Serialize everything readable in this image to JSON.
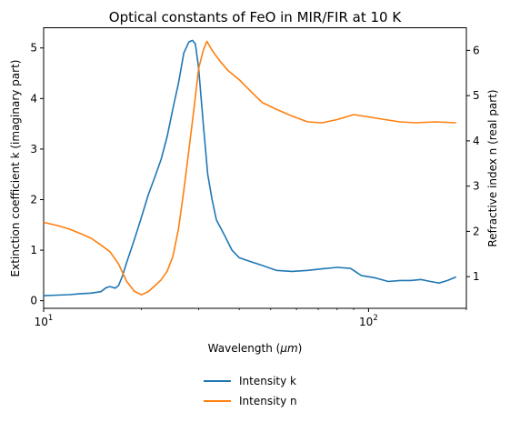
{
  "chart_data": {
    "type": "line",
    "title": "Optical constants of FeO in MIR/FIR at 10 K",
    "xlabel_prefix": "Wavelength (",
    "xlabel_unit": "μm",
    "xlabel_suffix": ")",
    "ylabel_left": "Extinction coefficient k (imaginary part)",
    "ylabel_right": "Refractive index n (real part)",
    "x_scale": "log",
    "xlim": [
      10,
      200
    ],
    "ylim_left": [
      -0.15,
      5.4
    ],
    "ylim_right": [
      0.3,
      6.5
    ],
    "x_ticks": [
      {
        "value": 10,
        "label": "10^1"
      },
      {
        "value": 100,
        "label": "10^2"
      }
    ],
    "y_ticks_left": [
      {
        "value": 0,
        "label": "0"
      },
      {
        "value": 1,
        "label": "1"
      },
      {
        "value": 2,
        "label": "2"
      },
      {
        "value": 3,
        "label": "3"
      },
      {
        "value": 4,
        "label": "4"
      },
      {
        "value": 5,
        "label": "5"
      }
    ],
    "y_ticks_right": [
      {
        "value": 1,
        "label": "1"
      },
      {
        "value": 2,
        "label": "2"
      },
      {
        "value": 3,
        "label": "3"
      },
      {
        "value": 4,
        "label": "4"
      },
      {
        "value": 5,
        "label": "5"
      },
      {
        "value": 6,
        "label": "6"
      }
    ],
    "grid": false,
    "legend_position": "bottom-center",
    "series": [
      {
        "name": "Intensity k",
        "axis": "left",
        "color": "#1f77b4",
        "points": [
          [
            10.0,
            0.1
          ],
          [
            11.0,
            0.11
          ],
          [
            12.0,
            0.12
          ],
          [
            13.0,
            0.14
          ],
          [
            14.0,
            0.15
          ],
          [
            15.0,
            0.18
          ],
          [
            15.6,
            0.26
          ],
          [
            16.0,
            0.28
          ],
          [
            16.6,
            0.25
          ],
          [
            17.0,
            0.3
          ],
          [
            17.5,
            0.5
          ],
          [
            18.0,
            0.75
          ],
          [
            19.0,
            1.2
          ],
          [
            20.0,
            1.65
          ],
          [
            21.0,
            2.1
          ],
          [
            22.0,
            2.45
          ],
          [
            23.0,
            2.8
          ],
          [
            24.0,
            3.25
          ],
          [
            25.0,
            3.8
          ],
          [
            26.0,
            4.3
          ],
          [
            27.0,
            4.9
          ],
          [
            28.0,
            5.12
          ],
          [
            28.7,
            5.15
          ],
          [
            29.3,
            5.08
          ],
          [
            30.0,
            4.6
          ],
          [
            31.0,
            3.5
          ],
          [
            32.0,
            2.5
          ],
          [
            33.0,
            2.0
          ],
          [
            34.0,
            1.6
          ],
          [
            36.0,
            1.3
          ],
          [
            38.0,
            1.0
          ],
          [
            40.0,
            0.85
          ],
          [
            43.0,
            0.78
          ],
          [
            47.0,
            0.7
          ],
          [
            52.0,
            0.6
          ],
          [
            58.0,
            0.58
          ],
          [
            65.0,
            0.6
          ],
          [
            72.0,
            0.63
          ],
          [
            80.0,
            0.66
          ],
          [
            88.0,
            0.64
          ],
          [
            95.0,
            0.5
          ],
          [
            105.0,
            0.45
          ],
          [
            115.0,
            0.38
          ],
          [
            125.0,
            0.4
          ],
          [
            135.0,
            0.4
          ],
          [
            145.0,
            0.42
          ],
          [
            155.0,
            0.38
          ],
          [
            165.0,
            0.35
          ],
          [
            175.0,
            0.4
          ],
          [
            186.0,
            0.47
          ]
        ]
      },
      {
        "name": "Intensity n",
        "axis": "right",
        "color": "#ff7f0e",
        "points": [
          [
            10.0,
            2.2
          ],
          [
            11.0,
            2.13
          ],
          [
            12.0,
            2.05
          ],
          [
            13.0,
            1.95
          ],
          [
            14.0,
            1.85
          ],
          [
            15.0,
            1.7
          ],
          [
            16.0,
            1.55
          ],
          [
            17.0,
            1.28
          ],
          [
            18.0,
            0.9
          ],
          [
            19.0,
            0.68
          ],
          [
            20.0,
            0.6
          ],
          [
            21.0,
            0.67
          ],
          [
            22.0,
            0.8
          ],
          [
            23.0,
            0.93
          ],
          [
            24.0,
            1.12
          ],
          [
            25.0,
            1.45
          ],
          [
            26.0,
            2.05
          ],
          [
            27.0,
            2.9
          ],
          [
            28.0,
            3.8
          ],
          [
            29.0,
            4.7
          ],
          [
            30.0,
            5.6
          ],
          [
            31.0,
            6.0
          ],
          [
            31.8,
            6.2
          ],
          [
            33.0,
            6.0
          ],
          [
            35.0,
            5.75
          ],
          [
            37.0,
            5.55
          ],
          [
            40.0,
            5.35
          ],
          [
            44.0,
            5.05
          ],
          [
            47.0,
            4.85
          ],
          [
            52.0,
            4.7
          ],
          [
            58.0,
            4.55
          ],
          [
            65.0,
            4.42
          ],
          [
            72.0,
            4.4
          ],
          [
            80.0,
            4.47
          ],
          [
            90.0,
            4.58
          ],
          [
            100.0,
            4.53
          ],
          [
            110.0,
            4.48
          ],
          [
            125.0,
            4.42
          ],
          [
            140.0,
            4.4
          ],
          [
            160.0,
            4.42
          ],
          [
            186.0,
            4.4
          ]
        ]
      }
    ]
  }
}
